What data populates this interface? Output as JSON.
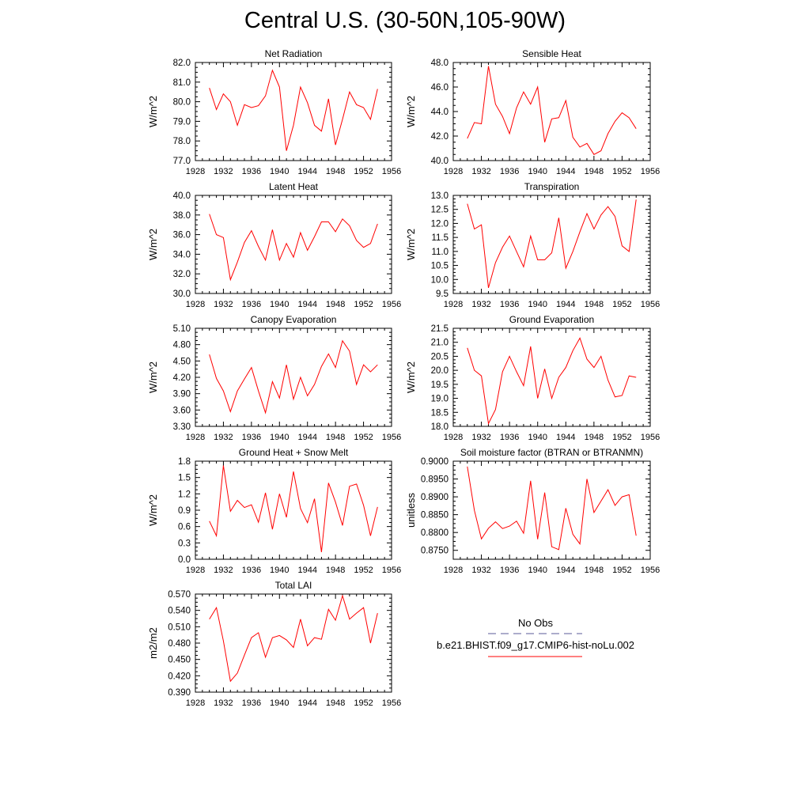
{
  "figure": {
    "title": "Central U.S. (30-50N,105-90W)"
  },
  "legend": {
    "obs_label": "No Obs",
    "obs_color": "#5a5a9a",
    "model_label": "b.e21.BHIST.f09_g17.CMIP6-hist-noLu.002",
    "model_color": "#ff0000"
  },
  "chart_data": [
    {
      "type": "line",
      "title": "Net Radiation",
      "ylabel": "W/m^2",
      "xlim": [
        1928,
        1956
      ],
      "ylim": [
        77.0,
        82.0
      ],
      "xticks": [
        "1928",
        "1932",
        "1936",
        "1940",
        "1944",
        "1948",
        "1952",
        "1956"
      ],
      "yticks": [
        "77.0",
        "78.0",
        "79.0",
        "80.0",
        "81.0",
        "82.0"
      ],
      "x": [
        1930,
        1931,
        1932,
        1933,
        1934,
        1935,
        1936,
        1937,
        1938,
        1939,
        1940,
        1941,
        1942,
        1943,
        1944,
        1945,
        1946,
        1947,
        1948,
        1949,
        1950,
        1951,
        1952,
        1953,
        1954
      ],
      "series": [
        {
          "values": [
            80.7,
            79.6,
            80.4,
            80.0,
            78.8,
            79.85,
            79.7,
            79.8,
            80.3,
            81.6,
            80.75,
            77.5,
            78.8,
            80.75,
            79.95,
            78.8,
            78.5,
            80.15,
            77.8,
            79.1,
            80.5,
            79.85,
            79.7,
            79.1,
            80.65
          ],
          "color": "#ff0000"
        }
      ]
    },
    {
      "type": "line",
      "title": "Sensible Heat",
      "ylabel": "W/m^2",
      "xlim": [
        1928,
        1956
      ],
      "ylim": [
        40.0,
        48.0
      ],
      "xticks": [
        "1928",
        "1932",
        "1936",
        "1940",
        "1944",
        "1948",
        "1952",
        "1956"
      ],
      "yticks": [
        "40.0",
        "42.0",
        "44.0",
        "46.0",
        "48.0"
      ],
      "x": [
        1930,
        1931,
        1932,
        1933,
        1934,
        1935,
        1936,
        1937,
        1938,
        1939,
        1940,
        1941,
        1942,
        1943,
        1944,
        1945,
        1946,
        1947,
        1948,
        1949,
        1950,
        1951,
        1952,
        1953,
        1954
      ],
      "series": [
        {
          "values": [
            41.8,
            43.1,
            43.0,
            47.7,
            44.6,
            43.6,
            42.2,
            44.3,
            45.6,
            44.6,
            46.0,
            41.5,
            43.4,
            43.5,
            44.9,
            41.9,
            41.1,
            41.4,
            40.5,
            40.8,
            42.2,
            43.2,
            43.9,
            43.5,
            42.6
          ],
          "color": "#ff0000"
        }
      ]
    },
    {
      "type": "line",
      "title": "Latent Heat",
      "ylabel": "W/m^2",
      "xlim": [
        1928,
        1956
      ],
      "ylim": [
        30.0,
        40.0
      ],
      "xticks": [
        "1928",
        "1932",
        "1936",
        "1940",
        "1944",
        "1948",
        "1952",
        "1956"
      ],
      "yticks": [
        "30.0",
        "32.0",
        "34.0",
        "36.0",
        "38.0",
        "40.0"
      ],
      "x": [
        1930,
        1931,
        1932,
        1933,
        1934,
        1935,
        1936,
        1937,
        1938,
        1939,
        1940,
        1941,
        1942,
        1943,
        1944,
        1945,
        1946,
        1947,
        1948,
        1949,
        1950,
        1951,
        1952,
        1953,
        1954
      ],
      "series": [
        {
          "values": [
            38.1,
            36.0,
            35.7,
            31.4,
            33.2,
            35.2,
            36.4,
            34.8,
            33.4,
            36.5,
            33.4,
            35.1,
            33.7,
            36.2,
            34.4,
            35.8,
            37.3,
            37.3,
            36.3,
            37.6,
            36.9,
            35.4,
            34.7,
            35.1,
            37.1
          ],
          "color": "#ff0000"
        }
      ]
    },
    {
      "type": "line",
      "title": "Transpiration",
      "ylabel": "W/m^2",
      "xlim": [
        1928,
        1956
      ],
      "ylim": [
        9.5,
        13.0
      ],
      "xticks": [
        "1928",
        "1932",
        "1936",
        "1940",
        "1944",
        "1948",
        "1952",
        "1956"
      ],
      "yticks": [
        "9.5",
        "10.0",
        "10.5",
        "11.0",
        "11.5",
        "12.0",
        "12.5",
        "13.0"
      ],
      "x": [
        1930,
        1931,
        1932,
        1933,
        1934,
        1935,
        1936,
        1937,
        1938,
        1939,
        1940,
        1941,
        1942,
        1943,
        1944,
        1945,
        1946,
        1947,
        1948,
        1949,
        1950,
        1951,
        1952,
        1953,
        1954
      ],
      "series": [
        {
          "values": [
            12.7,
            11.8,
            11.95,
            9.7,
            10.6,
            11.15,
            11.55,
            11.0,
            10.45,
            11.55,
            10.7,
            10.7,
            10.95,
            12.2,
            10.4,
            11.0,
            11.7,
            12.35,
            11.8,
            12.3,
            12.6,
            12.25,
            11.2,
            11.0,
            12.85
          ],
          "color": "#ff0000"
        }
      ]
    },
    {
      "type": "line",
      "title": "Canopy Evaporation",
      "ylabel": "W/m^2",
      "xlim": [
        1928,
        1956
      ],
      "ylim": [
        3.3,
        5.1
      ],
      "xticks": [
        "1928",
        "1932",
        "1936",
        "1940",
        "1944",
        "1948",
        "1952",
        "1956"
      ],
      "yticks": [
        "3.30",
        "3.60",
        "3.90",
        "4.20",
        "4.50",
        "4.80",
        "5.10"
      ],
      "x": [
        1930,
        1931,
        1932,
        1933,
        1934,
        1935,
        1936,
        1937,
        1938,
        1939,
        1940,
        1941,
        1942,
        1943,
        1944,
        1945,
        1946,
        1947,
        1948,
        1949,
        1950,
        1951,
        1952,
        1953,
        1954
      ],
      "series": [
        {
          "values": [
            4.62,
            4.18,
            3.95,
            3.57,
            3.95,
            4.17,
            4.38,
            3.95,
            3.55,
            4.12,
            3.82,
            4.43,
            3.8,
            4.2,
            3.86,
            4.07,
            4.4,
            4.63,
            4.38,
            4.87,
            4.68,
            4.07,
            4.43,
            4.3,
            4.43
          ],
          "color": "#ff0000"
        }
      ]
    },
    {
      "type": "line",
      "title": "Ground Evaporation",
      "ylabel": "W/m^2",
      "xlim": [
        1928,
        1956
      ],
      "ylim": [
        18.0,
        21.5
      ],
      "xticks": [
        "1928",
        "1932",
        "1936",
        "1940",
        "1944",
        "1948",
        "1952",
        "1956"
      ],
      "yticks": [
        "18.0",
        "18.5",
        "19.0",
        "19.5",
        "20.0",
        "20.5",
        "21.0",
        "21.5"
      ],
      "x": [
        1930,
        1931,
        1932,
        1933,
        1934,
        1935,
        1936,
        1937,
        1938,
        1939,
        1940,
        1941,
        1942,
        1943,
        1944,
        1945,
        1946,
        1947,
        1948,
        1949,
        1950,
        1951,
        1952,
        1953,
        1954
      ],
      "series": [
        {
          "values": [
            20.8,
            20.0,
            19.8,
            18.1,
            18.6,
            19.95,
            20.5,
            19.95,
            19.45,
            20.85,
            19.0,
            20.05,
            19.0,
            19.75,
            20.1,
            20.7,
            21.15,
            20.4,
            20.1,
            20.5,
            19.65,
            19.05,
            19.1,
            19.8,
            19.75
          ],
          "color": "#ff0000"
        }
      ]
    },
    {
      "type": "line",
      "title": "Ground Heat + Snow Melt",
      "ylabel": "W/m^2",
      "xlim": [
        1928,
        1956
      ],
      "ylim": [
        0.0,
        1.8
      ],
      "xticks": [
        "1928",
        "1932",
        "1936",
        "1940",
        "1944",
        "1948",
        "1952",
        "1956"
      ],
      "yticks": [
        "0.0",
        "0.3",
        "0.6",
        "0.9",
        "1.2",
        "1.5",
        "1.8"
      ],
      "x": [
        1930,
        1931,
        1932,
        1933,
        1934,
        1935,
        1936,
        1937,
        1938,
        1939,
        1940,
        1941,
        1942,
        1943,
        1944,
        1945,
        1946,
        1947,
        1948,
        1949,
        1950,
        1951,
        1952,
        1953,
        1954
      ],
      "series": [
        {
          "values": [
            0.7,
            0.43,
            1.72,
            0.88,
            1.08,
            0.95,
            1.0,
            0.68,
            1.22,
            0.55,
            1.2,
            0.77,
            1.61,
            0.93,
            0.67,
            1.11,
            0.13,
            1.4,
            1.05,
            0.62,
            1.34,
            1.38,
            0.99,
            0.43,
            0.96
          ],
          "color": "#ff0000"
        }
      ]
    },
    {
      "type": "line",
      "title": "Soil moisture factor (BTRAN or BTRANMN)",
      "ylabel": "unitless",
      "xlim": [
        1928,
        1956
      ],
      "ylim": [
        0.8725,
        0.9
      ],
      "xticks": [
        "1928",
        "1932",
        "1936",
        "1940",
        "1944",
        "1948",
        "1952",
        "1956"
      ],
      "yticks": [
        "0.8750",
        "0.8800",
        "0.8850",
        "0.8900",
        "0.8950",
        "0.9000"
      ],
      "x": [
        1930,
        1931,
        1932,
        1933,
        1934,
        1935,
        1936,
        1937,
        1938,
        1939,
        1940,
        1941,
        1942,
        1943,
        1944,
        1945,
        1946,
        1947,
        1948,
        1949,
        1950,
        1951,
        1952,
        1953,
        1954
      ],
      "series": [
        {
          "values": [
            0.8985,
            0.8862,
            0.8782,
            0.8812,
            0.883,
            0.8811,
            0.8818,
            0.8832,
            0.8798,
            0.8945,
            0.8781,
            0.8912,
            0.876,
            0.8752,
            0.8868,
            0.8795,
            0.8768,
            0.895,
            0.8856,
            0.8888,
            0.892,
            0.8876,
            0.89,
            0.8906,
            0.8791
          ],
          "color": "#ff0000"
        }
      ]
    },
    {
      "type": "line",
      "title": "Total LAI",
      "ylabel": "m2/m2",
      "xlim": [
        1928,
        1956
      ],
      "ylim": [
        0.39,
        0.57
      ],
      "xticks": [
        "1928",
        "1932",
        "1936",
        "1940",
        "1944",
        "1948",
        "1952",
        "1956"
      ],
      "yticks": [
        "0.390",
        "0.420",
        "0.450",
        "0.480",
        "0.510",
        "0.540",
        "0.570"
      ],
      "x": [
        1930,
        1931,
        1932,
        1933,
        1934,
        1935,
        1936,
        1937,
        1938,
        1939,
        1940,
        1941,
        1942,
        1943,
        1944,
        1945,
        1946,
        1947,
        1948,
        1949,
        1950,
        1951,
        1952,
        1953,
        1954
      ],
      "series": [
        {
          "values": [
            0.524,
            0.545,
            0.484,
            0.41,
            0.425,
            0.458,
            0.49,
            0.499,
            0.454,
            0.49,
            0.494,
            0.486,
            0.472,
            0.524,
            0.475,
            0.49,
            0.487,
            0.542,
            0.522,
            0.567,
            0.524,
            0.535,
            0.545,
            0.48,
            0.535
          ],
          "color": "#ff0000"
        }
      ]
    }
  ]
}
